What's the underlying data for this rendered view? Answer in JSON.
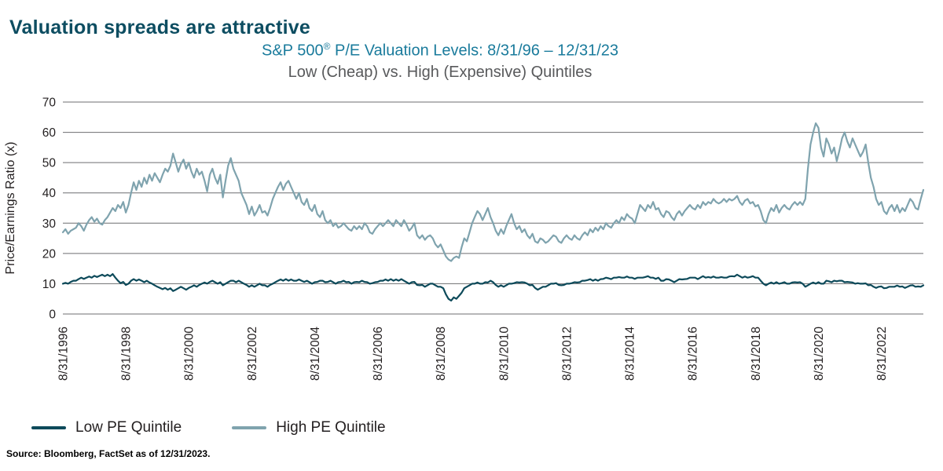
{
  "page": {
    "heading": "Valuation spreads are attractive",
    "source": "Source: Bloomberg, FactSet as of 12/31/2023."
  },
  "colors": {
    "heading": "#0d4d61",
    "chart_title": "#1a7b9c",
    "subtitle_gray": "#58595b",
    "grid": "#6d6e71",
    "low_line": "#0d4a5a",
    "high_line": "#7fa3ae"
  },
  "chart_data": {
    "type": "line",
    "title": "S&P 500® P/E Valuation Levels: 8/31/96 – 12/31/23",
    "title_parts": {
      "pre": "S&P 500",
      "sup": "®",
      "post": " P/E Valuation Levels: 8/31/96 – 12/31/23"
    },
    "subtitle": "Low (Cheap) vs. High (Expensive) Quintiles",
    "ylabel": "Price/Earnings Ratio (x)",
    "ylim": [
      0,
      70
    ],
    "yticks": [
      0,
      10,
      20,
      30,
      40,
      50,
      60,
      70
    ],
    "grid": "horizontal",
    "legend_position": "bottom-left",
    "x_frequency": "monthly",
    "x_start": "8/31/1996",
    "x_end": "12/31/2023",
    "x_major_ticks": [
      "8/31/1996",
      "8/31/1998",
      "8/31/2000",
      "8/31/2002",
      "8/31/2004",
      "8/31/2006",
      "8/31/2008",
      "8/31/2010",
      "8/31/2012",
      "8/31/2014",
      "8/31/2016",
      "8/31/2018",
      "8/31/2020",
      "8/31/2022"
    ],
    "x_major_tick_month_index": [
      0,
      24,
      48,
      72,
      96,
      120,
      144,
      168,
      192,
      216,
      240,
      264,
      288,
      312
    ],
    "style": {
      "grid_color": "#6d6e71",
      "line_width": 2.2
    },
    "series": [
      {
        "name": "Low PE Quintile",
        "color": "#0d4a5a",
        "values": [
          10,
          10.3,
          10,
          10.6,
          11,
          11,
          11.5,
          12,
          11.6,
          12,
          12.4,
          12,
          12.6,
          12.2,
          12.6,
          13,
          12.5,
          13,
          12.5,
          13.2,
          12,
          11,
          10.2,
          10.6,
          9.6,
          10,
          11,
          11.5,
          11,
          11.4,
          11,
          10.5,
          11,
          10.4,
          10,
          9.5,
          9,
          8.6,
          8.2,
          8.6,
          8,
          8.5,
          7.6,
          8,
          8.5,
          9,
          8.5,
          8,
          8.6,
          9,
          9.5,
          9,
          9.6,
          10,
          10.4,
          10,
          10.6,
          11,
          10.5,
          10,
          10.5,
          9.5,
          10,
          10.5,
          11,
          11,
          10.5,
          11,
          10.5,
          10,
          9.6,
          9,
          9.5,
          9,
          9.5,
          10,
          9.5,
          9.5,
          9,
          9.6,
          10,
          10.5,
          11,
          11.4,
          11,
          11.5,
          11,
          11.4,
          11,
          11,
          11.4,
          11,
          10.6,
          11,
          10.5,
          10,
          10.5,
          10.6,
          11,
          11,
          10.5,
          10.6,
          11,
          10.5,
          10,
          10.5,
          10.6,
          11,
          10.5,
          10.6,
          10,
          10.5,
          10.6,
          10.5,
          11,
          10.6,
          10.5,
          10,
          10.2,
          10.5,
          10.6,
          11,
          11,
          11.4,
          11,
          11.5,
          11,
          11.4,
          11,
          11.5,
          11,
          10.5,
          10,
          10.5,
          10.6,
          9.6,
          9.5,
          9.6,
          9,
          9.5,
          10,
          10,
          9.5,
          9,
          9,
          8.5,
          6.5,
          5,
          4.4,
          5.5,
          5,
          6,
          7,
          8.5,
          9,
          9.5,
          10,
          10,
          10.4,
          10,
          10,
          10.5,
          10.4,
          11,
          10.5,
          9.6,
          9,
          9.5,
          9,
          9.5,
          10,
          10,
          10.2,
          10.5,
          10.4,
          10.5,
          10.4,
          10,
          9.5,
          9.6,
          8.6,
          8,
          8.5,
          9,
          9,
          9.5,
          10,
          10,
          10.2,
          9.6,
          9.5,
          9.6,
          10,
          10,
          10.2,
          10.5,
          10.4,
          10.5,
          11,
          11,
          11.2,
          11.5,
          11,
          11.4,
          11,
          11.5,
          11.6,
          12,
          11.8,
          11.5,
          12,
          12,
          12.2,
          12,
          12,
          12.4,
          12,
          12,
          11.6,
          12,
          12,
          12,
          12.2,
          12.5,
          12,
          12,
          11.6,
          12,
          11,
          11,
          11.5,
          11.4,
          11,
          10.5,
          11,
          11.5,
          11.4,
          11.5,
          11.6,
          12,
          12,
          12,
          11.5,
          12,
          12.5,
          12,
          12.2,
          12,
          12.4,
          12,
          12,
          12.2,
          12,
          12,
          12.4,
          12.5,
          12.4,
          13,
          12.5,
          12,
          12.4,
          12,
          12.2,
          12.5,
          12,
          12,
          11,
          10,
          9.5,
          10,
          10.4,
          10,
          10.5,
          10,
          10.2,
          10.5,
          10,
          10,
          10.4,
          10.5,
          10.4,
          10.5,
          10,
          9,
          9.5,
          10,
          10.4,
          10,
          10.5,
          10,
          10,
          11,
          10.8,
          10.5,
          11,
          10.8,
          11,
          11,
          10.5,
          10.6,
          10.5,
          10.4,
          10,
          10.2,
          10,
          10,
          10.1,
          9.5,
          9.6,
          9,
          8.6,
          9,
          9.1,
          8.5,
          8.6,
          9,
          9,
          9,
          9.4,
          9,
          9.1,
          8.6,
          9,
          9.4,
          9.5,
          9,
          9.1,
          9,
          9.5
        ]
      },
      {
        "name": "High PE Quintile",
        "color": "#7fa3ae",
        "values": [
          27,
          28,
          26.5,
          27.5,
          28,
          28.5,
          30,
          29,
          27.5,
          29.5,
          31,
          32,
          30.5,
          31.5,
          30,
          29.5,
          31,
          32,
          33.5,
          35,
          34,
          36,
          35,
          37,
          33.5,
          36,
          40,
          43.5,
          41,
          44,
          42,
          45,
          43,
          46,
          44,
          46.5,
          45,
          43.5,
          46,
          48,
          47,
          49,
          53,
          50,
          47,
          49.5,
          51,
          48,
          50,
          47,
          45,
          48,
          46,
          47,
          44,
          40.5,
          46,
          48,
          45,
          43,
          46,
          38.5,
          44,
          49,
          51.5,
          48,
          46,
          44,
          40,
          38,
          36,
          33,
          35.5,
          32.5,
          34,
          36,
          33.5,
          34,
          32.5,
          35,
          38,
          40,
          42,
          43.5,
          41,
          43,
          44,
          42,
          40,
          38,
          40,
          37,
          36,
          38,
          35,
          34,
          36,
          33,
          32,
          34,
          31,
          30,
          31,
          29,
          30,
          28.5,
          29,
          30,
          29,
          28,
          27.5,
          29,
          28,
          29,
          28,
          30,
          29,
          27,
          26.5,
          28,
          29,
          30,
          29,
          30,
          31,
          30,
          29,
          31,
          30,
          29,
          31,
          29.5,
          27.5,
          28.5,
          30,
          26,
          25,
          26,
          24.5,
          25.5,
          26,
          25,
          23,
          22,
          23,
          21,
          19,
          18,
          17.5,
          18.5,
          19,
          18.5,
          22,
          25,
          24,
          27,
          30,
          32,
          34,
          33,
          31,
          33,
          35,
          32,
          30,
          27.5,
          26,
          28,
          26.5,
          29,
          31,
          33,
          30,
          28,
          29,
          27,
          28,
          26,
          25,
          26.5,
          24,
          23.5,
          25,
          24.5,
          23.5,
          24,
          25,
          26,
          25.5,
          24,
          23.5,
          25,
          26,
          25,
          24.5,
          26,
          25,
          24.5,
          26,
          27,
          26,
          28,
          27,
          28.5,
          27.5,
          29,
          28,
          30,
          29,
          28.5,
          30,
          31,
          30,
          32,
          31,
          33,
          32,
          31.5,
          30,
          33,
          36,
          35,
          34,
          36,
          35,
          37,
          34.5,
          35,
          33,
          32,
          34,
          33.5,
          32,
          31,
          33,
          34,
          32.5,
          34,
          35,
          36,
          35,
          34.5,
          36,
          35,
          37,
          36,
          37,
          36.5,
          38,
          37,
          36.5,
          37,
          38,
          37,
          38,
          37.5,
          38,
          39,
          37,
          36,
          37.5,
          38,
          36.5,
          37,
          35.5,
          36,
          34,
          31,
          30,
          33,
          35,
          34,
          36,
          33.5,
          35,
          36,
          35,
          34.5,
          36,
          37,
          36,
          37,
          36,
          38,
          48,
          56,
          60,
          63,
          61.5,
          55,
          52,
          58,
          56,
          53,
          55,
          50.5,
          54,
          58,
          60,
          57,
          55,
          58,
          56,
          54,
          52,
          53.5,
          56,
          50,
          45,
          42,
          38,
          36,
          37,
          34,
          33,
          35,
          36,
          34,
          36,
          33.5,
          35,
          34,
          36,
          38,
          37,
          35,
          34.5,
          38,
          41
        ]
      }
    ]
  }
}
